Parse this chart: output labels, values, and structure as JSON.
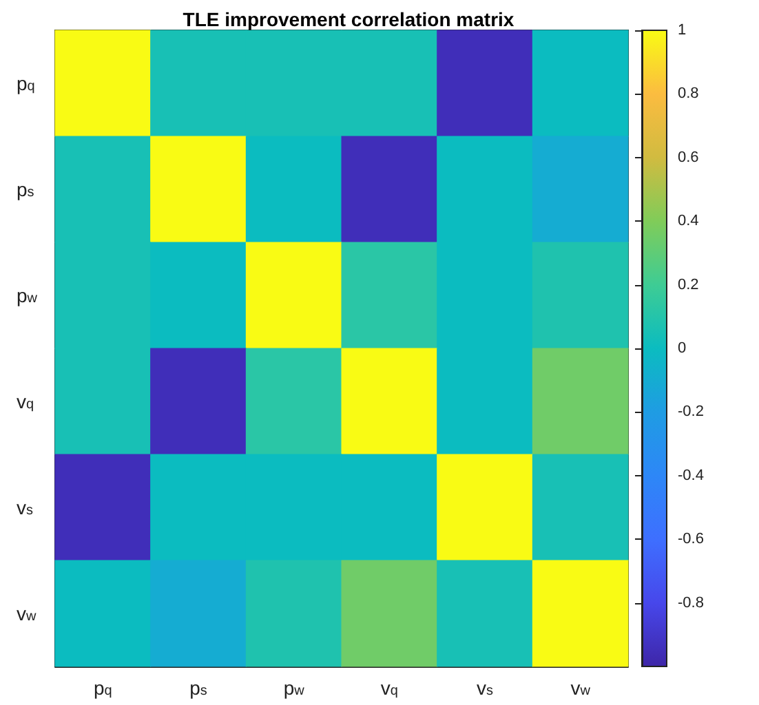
{
  "chart_data": {
    "type": "heatmap",
    "title": "TLE improvement correlation matrix",
    "categories": [
      "p$_{q}$",
      "p$_{s}$",
      "p$_{w}$",
      "v$_{q}$",
      "v$_{s}$",
      "v$_{w}$"
    ],
    "y_categories": [
      "p$_{q}$",
      "p$_{s}$",
      "p$_{w}$",
      "v$_{q}$",
      "v$_{s}$",
      "v$_{w}$"
    ],
    "cells": [
      [
        1,
        0.05,
        0.05,
        0.05,
        -0.95,
        0.0
      ],
      [
        0.05,
        1,
        0.0,
        -0.95,
        0.0,
        -0.1
      ],
      [
        0.05,
        0.0,
        1,
        0.12,
        0.0,
        0.08
      ],
      [
        0.05,
        -0.95,
        0.12,
        1,
        0.0,
        0.35
      ],
      [
        -0.95,
        0.0,
        0.0,
        0.0,
        1,
        0.05
      ],
      [
        0.0,
        -0.1,
        0.08,
        0.35,
        0.05,
        1
      ]
    ],
    "clim": [
      -1,
      1
    ],
    "cticks": [
      -0.8,
      -0.6,
      -0.4,
      -0.2,
      0,
      0.2,
      0.4,
      0.6,
      0.8,
      1
    ]
  }
}
